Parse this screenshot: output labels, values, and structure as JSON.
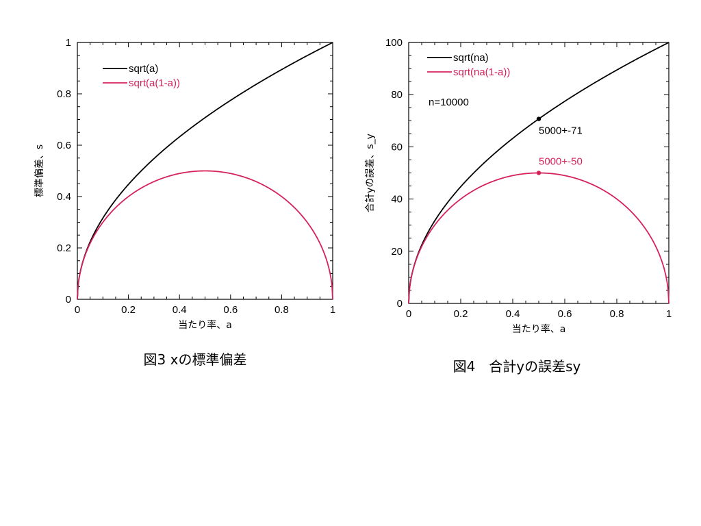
{
  "colors": {
    "black": "#000000",
    "crimson": "#d6225b"
  },
  "chart_data": [
    {
      "type": "line",
      "caption": "図3 xの標準偏差",
      "xlabel": "当たり率、a",
      "ylabel": "標準偏差、s",
      "xlim": [
        0,
        1
      ],
      "ylim": [
        0,
        1
      ],
      "xticks": [
        0,
        0.2,
        0.4,
        0.6,
        0.8,
        1
      ],
      "xtick_labels": [
        "0",
        "0.2",
        "0.4",
        "0.6",
        "0.8",
        "1"
      ],
      "yticks": [
        0,
        0.2,
        0.4,
        0.6,
        0.8,
        1
      ],
      "ytick_labels": [
        "0",
        "0.2",
        "0.4",
        "0.6",
        "0.8",
        "1"
      ],
      "legend": "top-left",
      "series": [
        {
          "name": "sqrt(a)",
          "function": "sqrt(a)",
          "scale": 1,
          "color": "#000000",
          "x": [
            0,
            0.05,
            0.1,
            0.2,
            0.3,
            0.4,
            0.5,
            0.6,
            0.7,
            0.8,
            0.9,
            1
          ],
          "y": [
            0,
            0.224,
            0.316,
            0.447,
            0.548,
            0.632,
            0.707,
            0.775,
            0.837,
            0.894,
            0.949,
            1
          ]
        },
        {
          "name": "sqrt(a(1-a))",
          "function": "sqrt(a(1-a))",
          "scale": 1,
          "color": "#d6225b",
          "x": [
            0,
            0.05,
            0.1,
            0.2,
            0.3,
            0.4,
            0.5,
            0.6,
            0.7,
            0.8,
            0.9,
            0.95,
            1
          ],
          "y": [
            0,
            0.218,
            0.3,
            0.4,
            0.458,
            0.49,
            0.5,
            0.49,
            0.458,
            0.4,
            0.3,
            0.218,
            0
          ]
        }
      ],
      "annotations": []
    },
    {
      "type": "line",
      "caption": "図4　合計yの誤差sy",
      "xlabel": "当たり率、a",
      "ylabel": "合計yの誤差、s_y",
      "xlim": [
        0,
        1
      ],
      "ylim": [
        0,
        100
      ],
      "xticks": [
        0,
        0.2,
        0.4,
        0.6,
        0.8,
        1
      ],
      "xtick_labels": [
        "0",
        "0.2",
        "0.4",
        "0.6",
        "0.8",
        "1"
      ],
      "yticks": [
        0,
        20,
        40,
        60,
        80,
        100
      ],
      "ytick_labels": [
        "0",
        "20",
        "40",
        "60",
        "80",
        "100"
      ],
      "legend": "top-left",
      "note": "n=10000",
      "series": [
        {
          "name": "sqrt(na)",
          "function": "sqrt(a)",
          "scale": 100,
          "color": "#000000",
          "x": [
            0,
            0.05,
            0.1,
            0.2,
            0.3,
            0.4,
            0.5,
            0.6,
            0.7,
            0.8,
            0.9,
            1
          ],
          "y": [
            0,
            22.4,
            31.6,
            44.7,
            54.8,
            63.2,
            70.7,
            77.5,
            83.7,
            89.4,
            94.9,
            100
          ]
        },
        {
          "name": "sqrt(na(1-a))",
          "function": "sqrt(a(1-a))",
          "scale": 100,
          "color": "#d6225b",
          "x": [
            0,
            0.05,
            0.1,
            0.2,
            0.3,
            0.4,
            0.5,
            0.6,
            0.7,
            0.8,
            0.9,
            0.95,
            1
          ],
          "y": [
            0,
            21.8,
            30,
            40,
            45.8,
            49,
            50,
            49,
            45.8,
            40,
            30,
            21.8,
            0
          ]
        }
      ],
      "annotations": [
        {
          "x": 0.5,
          "y": 70.7,
          "label": "5000+-71",
          "color": "#000000"
        },
        {
          "x": 0.5,
          "y": 50,
          "label": "5000+-50",
          "color": "#d6225b"
        }
      ]
    }
  ]
}
